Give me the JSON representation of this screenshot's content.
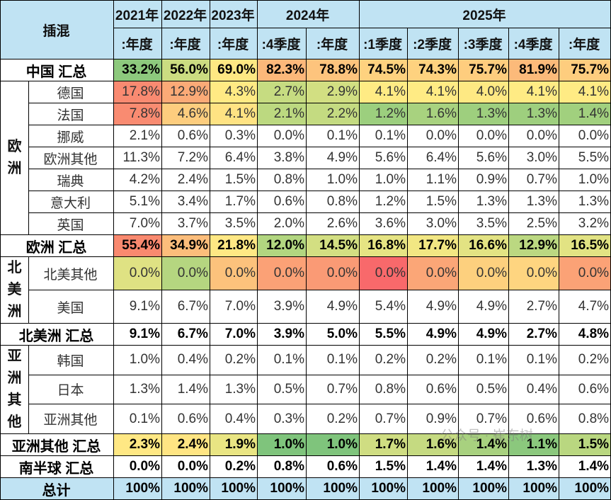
{
  "chart_data": {
    "type": "table",
    "corner_label": "插混",
    "year_headers": [
      "2021年",
      "2022年",
      "2023年",
      "2024年",
      "2025年"
    ],
    "period_headers": [
      ":年度",
      ":年度",
      ":年度",
      ":4季度",
      ":年度",
      ":1季度",
      ":2季度",
      ":3季度",
      ":4季度",
      ":年度"
    ],
    "rows": [
      {
        "group": "",
        "label": "中国 汇总",
        "total": true,
        "values": [
          "33.2%",
          "56.0%",
          "69.0%",
          "82.3%",
          "78.8%",
          "74.5%",
          "74.3%",
          "75.7%",
          "81.9%",
          "75.7%"
        ],
        "colors": [
          "#8dc97d",
          "#cbdc81",
          "#fee883",
          "#fcb87a",
          "#fdc47d",
          "#fed27f",
          "#fed27f",
          "#fecd7e",
          "#fcba7a",
          "#fecd7e"
        ]
      },
      {
        "group": "欧洲",
        "label": "德国",
        "values": [
          "17.8%",
          "12.9%",
          "4.3%",
          "2.7%",
          "2.9%",
          "4.1%",
          "4.1%",
          "4.0%",
          "4.1%",
          "4.1%"
        ],
        "colors": [
          "#f98a71",
          "#fbaa77",
          "#ffea84",
          "#c6dc81",
          "#d2df82",
          "#ffeb84",
          "#ffeb84",
          "#fee983",
          "#ffeb84",
          "#ffeb84"
        ]
      },
      {
        "group": "欧洲",
        "label": "法国",
        "values": [
          "7.8%",
          "4.6%",
          "4.1%",
          "2.1%",
          "2.2%",
          "1.2%",
          "1.6%",
          "1.3%",
          "1.3%",
          "1.4%"
        ],
        "colors": [
          "#f98b71",
          "#fdcd7e",
          "#ffe383",
          "#bcd980",
          "#c4db81",
          "#9ccf7e",
          "#a8d27f",
          "#9ecf7e",
          "#9ecf7e",
          "#a1d07e"
        ]
      },
      {
        "group": "欧洲",
        "label": "挪威",
        "values": [
          "2.1%",
          "0.6%",
          "0.3%",
          "0.0%",
          "0.1%",
          "0.1%",
          "0.0%",
          "0.0%",
          "0.0%",
          "0.0%"
        ]
      },
      {
        "group": "欧洲",
        "label": "欧洲其他",
        "values": [
          "11.3%",
          "7.2%",
          "6.4%",
          "3.8%",
          "4.9%",
          "5.6%",
          "6.4%",
          "5.6%",
          "3.0%",
          "5.5%"
        ]
      },
      {
        "group": "欧洲",
        "label": "瑞典",
        "values": [
          "4.2%",
          "2.4%",
          "1.5%",
          "0.8%",
          "1.0%",
          "1.0%",
          "1.1%",
          "0.9%",
          "0.7%",
          "1.0%"
        ]
      },
      {
        "group": "欧洲",
        "label": "意大利",
        "values": [
          "5.1%",
          "3.4%",
          "1.7%",
          "0.6%",
          "0.8%",
          "1.2%",
          "1.5%",
          "1.3%",
          "1.3%",
          "1.3%"
        ]
      },
      {
        "group": "欧洲",
        "label": "英国",
        "values": [
          "7.0%",
          "3.7%",
          "3.5%",
          "2.0%",
          "2.6%",
          "3.6%",
          "3.0%",
          "3.5%",
          "2.5%",
          "3.2%"
        ]
      },
      {
        "group": "",
        "label": "欧洲 汇总",
        "total": true,
        "values": [
          "55.4%",
          "34.9%",
          "21.8%",
          "12.0%",
          "14.5%",
          "16.8%",
          "17.7%",
          "16.6%",
          "12.9%",
          "16.5%"
        ],
        "colors": [
          "#f9896f",
          "#fcbd7b",
          "#ffe884",
          "#b2d680",
          "#d3df82",
          "#e6e483",
          "#f2e783",
          "#e3e383",
          "#bbd881",
          "#e2e383"
        ]
      },
      {
        "group": "北美洲",
        "label": "北美其他",
        "values": [
          "0.0%",
          "0.0%",
          "0.0%",
          "0.0%",
          "0.0%",
          "0.0%",
          "0.0%",
          "0.0%",
          "0.0%",
          "0.0%"
        ],
        "colors": [
          "#dfe283",
          "#b5d680",
          "#fcc27c",
          "#fba176",
          "#fa9a75",
          "#f8696b",
          "#fba677",
          "#fdd07e",
          "#fed580",
          "#fba276"
        ]
      },
      {
        "group": "北美洲",
        "label": "美国",
        "values": [
          "9.1%",
          "6.7%",
          "7.0%",
          "3.9%",
          "4.9%",
          "5.4%",
          "4.9%",
          "4.9%",
          "2.7%",
          "4.7%"
        ]
      },
      {
        "group": "",
        "label": "北美洲 汇总",
        "total": true,
        "plain": true,
        "values": [
          "9.1%",
          "6.7%",
          "7.0%",
          "3.9%",
          "5.0%",
          "5.5%",
          "4.9%",
          "4.9%",
          "2.7%",
          "4.8%"
        ]
      },
      {
        "group": "亚洲其他",
        "label": "韩国",
        "values": [
          "1.0%",
          "0.4%",
          "0.2%",
          "0.1%",
          "0.1%",
          "0.2%",
          "0.2%",
          "0.1%",
          "0.1%",
          "0.2%"
        ]
      },
      {
        "group": "亚洲其他",
        "label": "日本",
        "values": [
          "1.3%",
          "1.4%",
          "1.3%",
          "0.5%",
          "0.7%",
          "0.8%",
          "0.6%",
          "0.5%",
          "0.4%",
          "0.6%"
        ]
      },
      {
        "group": "亚洲其他",
        "label": "亚洲其他",
        "values": [
          "0.1%",
          "0.6%",
          "0.4%",
          "0.3%",
          "0.2%",
          "0.7%",
          "0.9%",
          "0.7%",
          "0.6%",
          "0.8%"
        ]
      },
      {
        "group": "",
        "label": "亚洲其他 汇总",
        "total": true,
        "values": [
          "2.3%",
          "2.4%",
          "1.9%",
          "1.0%",
          "1.0%",
          "1.7%",
          "1.6%",
          "1.4%",
          "1.1%",
          "1.5%"
        ],
        "colors": [
          "#ffe884",
          "#ffe583",
          "#e9e583",
          "#7fc47c",
          "#7fc47c",
          "#cfdd82",
          "#c5da81",
          "#a8d17f",
          "#8bc87d",
          "#b9d780"
        ]
      },
      {
        "group": "",
        "label": "南半球 汇总",
        "total": true,
        "values": [
          "0.0%",
          "0.0%",
          "0.2%",
          "0.8%",
          "0.6%",
          "1.5%",
          "1.4%",
          "1.4%",
          "1.3%",
          "1.4%"
        ]
      },
      {
        "group": "",
        "label": "总计",
        "total": true,
        "grand": true,
        "values": [
          "100%",
          "100%",
          "100%",
          "100%",
          "100%",
          "100%",
          "100%",
          "100%",
          "100%",
          "100%"
        ]
      }
    ]
  },
  "watermark": "公众号 · 崔东树"
}
